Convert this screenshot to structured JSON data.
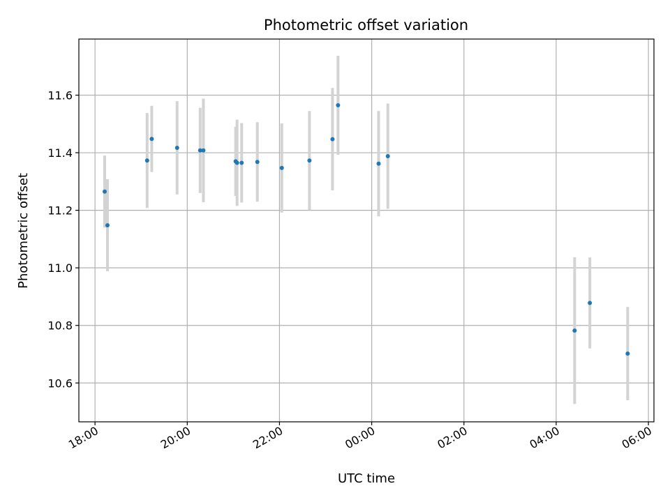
{
  "chart_data": {
    "type": "scatter",
    "title": "Photometric offset variation",
    "xlabel": "UTC time",
    "ylabel": "Photometric offset",
    "x_unit": "hours since 18:00 UTC",
    "xlim": [
      -0.35,
      12.12
    ],
    "ylim": [
      10.465,
      11.795
    ],
    "x_ticks": [
      {
        "value": 0,
        "label": "18:00"
      },
      {
        "value": 2,
        "label": "20:00"
      },
      {
        "value": 4,
        "label": "22:00"
      },
      {
        "value": 6,
        "label": "00:00"
      },
      {
        "value": 8,
        "label": "02:00"
      },
      {
        "value": 10,
        "label": "04:00"
      },
      {
        "value": 12,
        "label": "06:00"
      }
    ],
    "y_ticks": [
      {
        "value": 10.6,
        "label": "10.6"
      },
      {
        "value": 10.8,
        "label": "10.8"
      },
      {
        "value": 11.0,
        "label": "11.0"
      },
      {
        "value": 11.2,
        "label": "11.2"
      },
      {
        "value": 11.4,
        "label": "11.4"
      },
      {
        "value": 11.6,
        "label": "11.6"
      }
    ],
    "grid": true,
    "marker_color": "#1f77b4",
    "errorbar_color": "#d3d3d3",
    "points": [
      {
        "x": 0.21,
        "y": 11.265,
        "err": 0.125
      },
      {
        "x": 0.27,
        "y": 11.148,
        "err": 0.16
      },
      {
        "x": 1.13,
        "y": 11.373,
        "err": 0.165
      },
      {
        "x": 1.23,
        "y": 11.448,
        "err": 0.115
      },
      {
        "x": 1.78,
        "y": 11.417,
        "err": 0.162
      },
      {
        "x": 2.28,
        "y": 11.408,
        "err": 0.148
      },
      {
        "x": 2.35,
        "y": 11.408,
        "err": 0.18
      },
      {
        "x": 3.05,
        "y": 11.37,
        "err": 0.12
      },
      {
        "x": 3.08,
        "y": 11.365,
        "err": 0.15
      },
      {
        "x": 3.18,
        "y": 11.365,
        "err": 0.138
      },
      {
        "x": 3.52,
        "y": 11.368,
        "err": 0.138
      },
      {
        "x": 4.05,
        "y": 11.347,
        "err": 0.155
      },
      {
        "x": 4.65,
        "y": 11.373,
        "err": 0.172
      },
      {
        "x": 5.15,
        "y": 11.447,
        "err": 0.178
      },
      {
        "x": 5.27,
        "y": 11.565,
        "err": 0.172
      },
      {
        "x": 6.15,
        "y": 11.362,
        "err": 0.183
      },
      {
        "x": 6.35,
        "y": 11.388,
        "err": 0.183
      },
      {
        "x": 10.4,
        "y": 10.782,
        "err": 0.255
      },
      {
        "x": 10.73,
        "y": 10.878,
        "err": 0.158
      },
      {
        "x": 11.55,
        "y": 10.702,
        "err": 0.162
      }
    ]
  }
}
